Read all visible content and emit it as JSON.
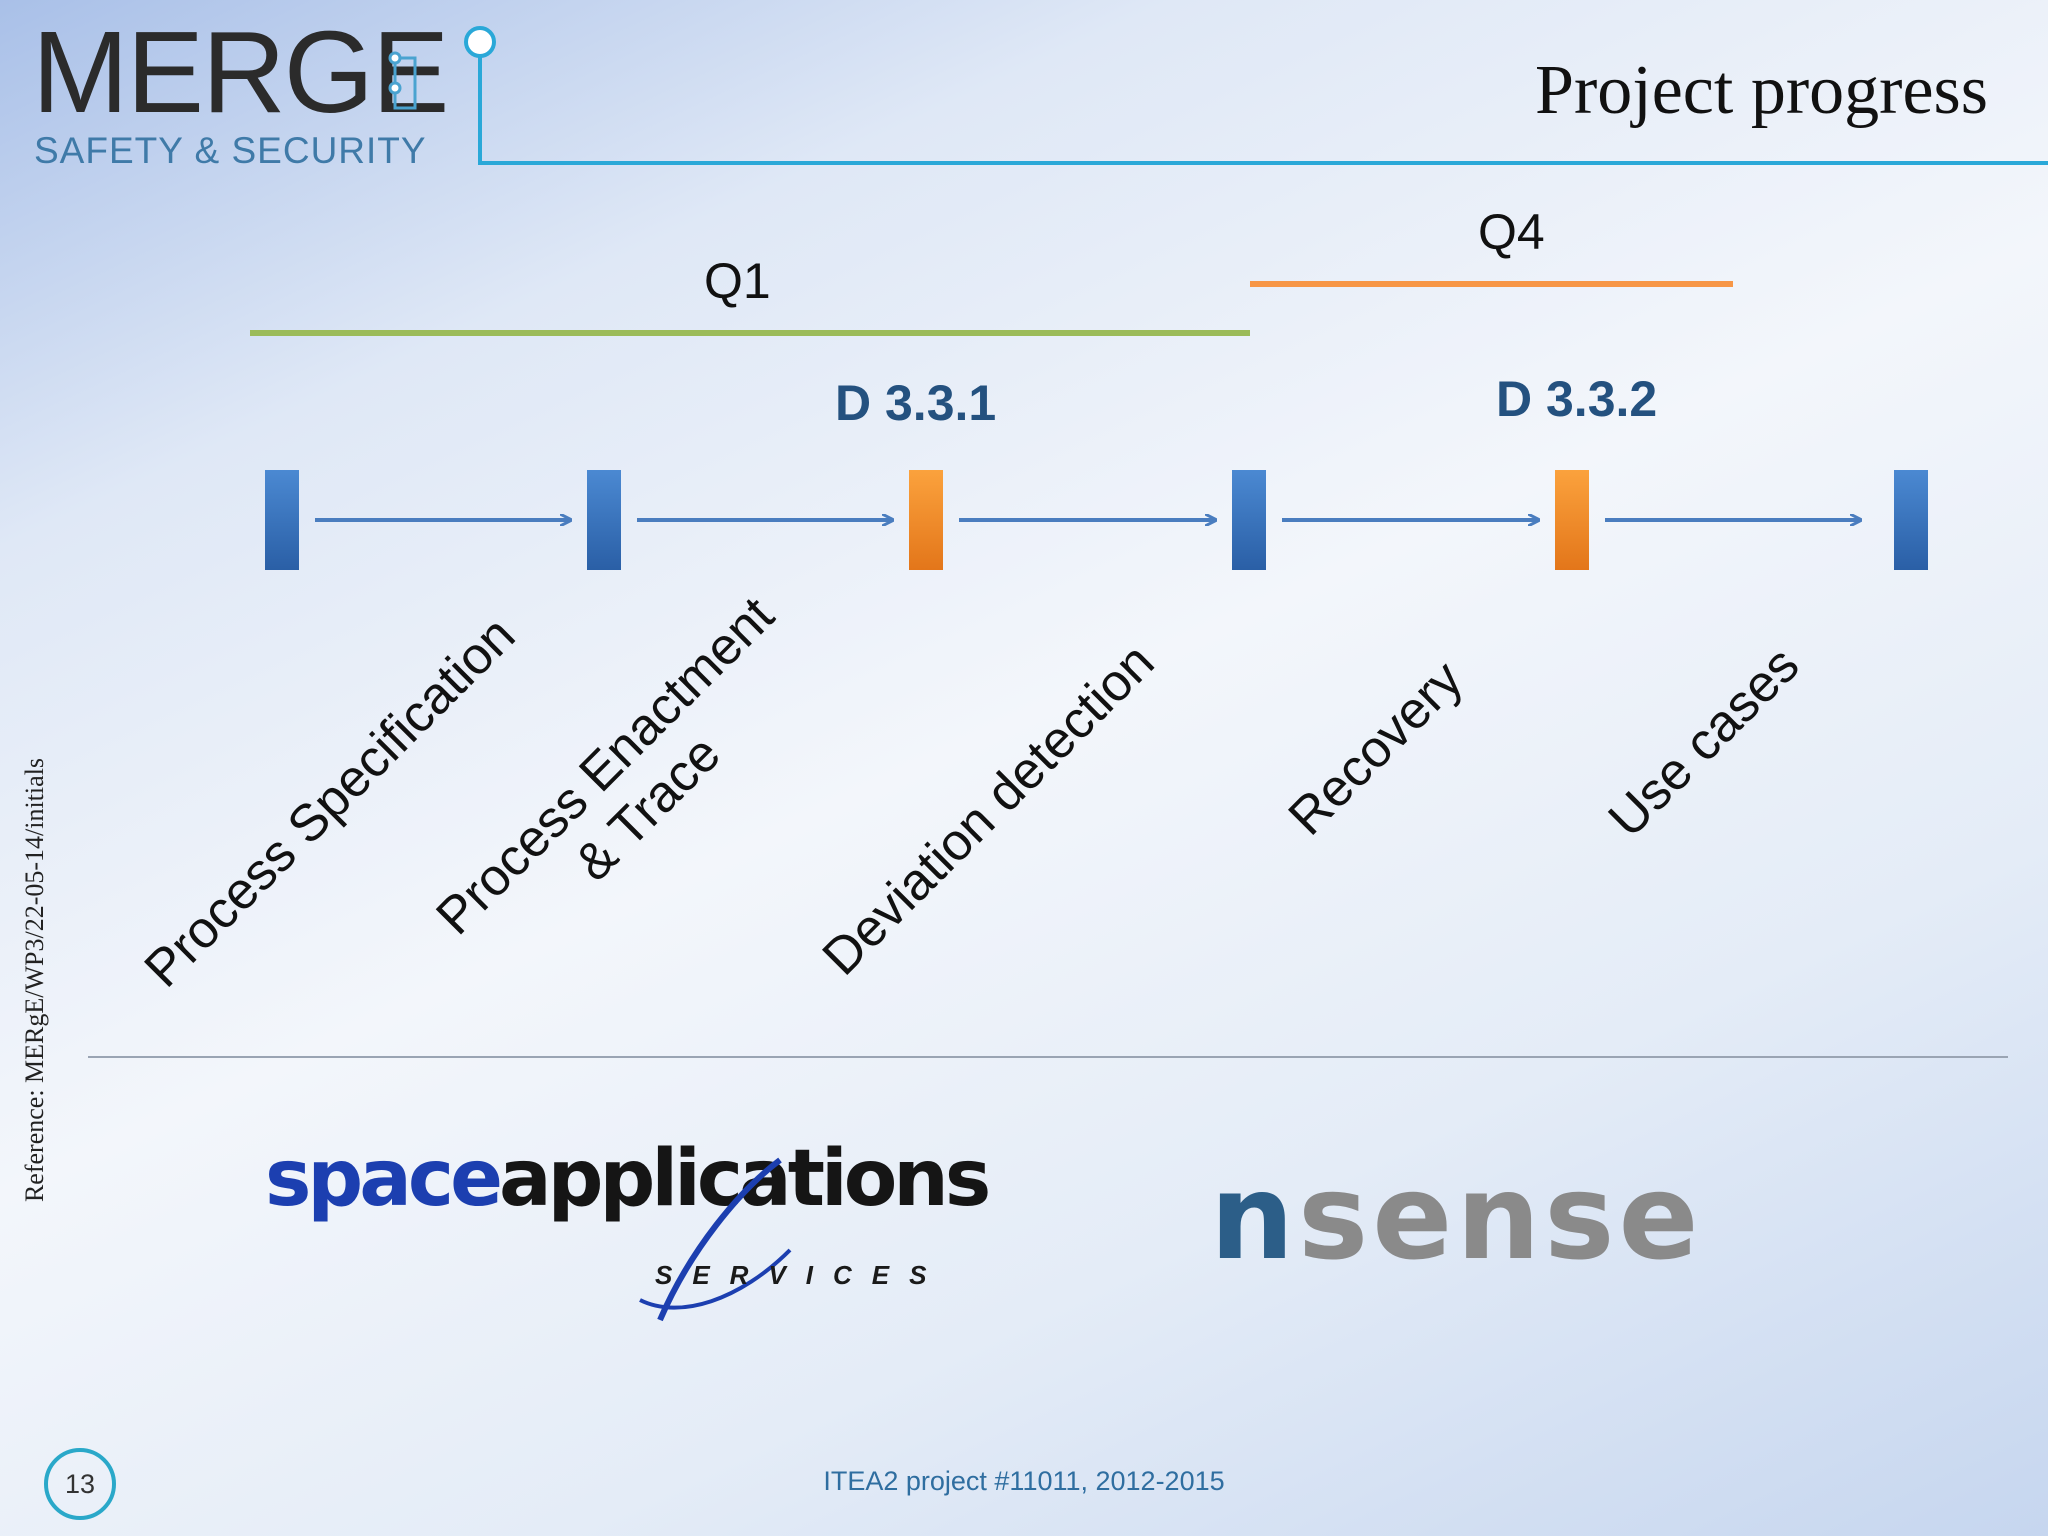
{
  "header": {
    "logo_main": "MERGE",
    "logo_sub": "SAFETY & SECURITY",
    "title": "Project progress"
  },
  "side_reference": "Reference: MERgE/WP3/22-05-14/initials",
  "quarters": [
    {
      "label": "Q1",
      "color": "#9bbb59"
    },
    {
      "label": "Q4",
      "color": "#f79646"
    }
  ],
  "deliverables": [
    "D 3.3.1",
    "D 3.3.2"
  ],
  "milestones": [
    {
      "type": "normal"
    },
    {
      "type": "normal"
    },
    {
      "type": "deliverable"
    },
    {
      "type": "normal"
    },
    {
      "type": "deliverable"
    },
    {
      "type": "normal"
    }
  ],
  "tasks": [
    {
      "line1": "Process Specification"
    },
    {
      "line1": "Process Enactment",
      "line2": "& Trace"
    },
    {
      "line1": "Deviation detection"
    },
    {
      "line1": "Recovery"
    },
    {
      "line1": "Use cases"
    }
  ],
  "partners": {
    "space_applications": {
      "part1": "space",
      "part2": "applications",
      "sub": "SERVICES"
    },
    "nsense": {
      "part1": "n",
      "part2": "sense"
    }
  },
  "footer": {
    "page_number": "13",
    "text": "ITEA2 project #11011, 2012-2015"
  },
  "colors": {
    "milestone_blue": "#3a78c3",
    "milestone_orange": "#f28b24",
    "arrow": "#4a7dbf",
    "accent_line": "#2aa8d8"
  }
}
